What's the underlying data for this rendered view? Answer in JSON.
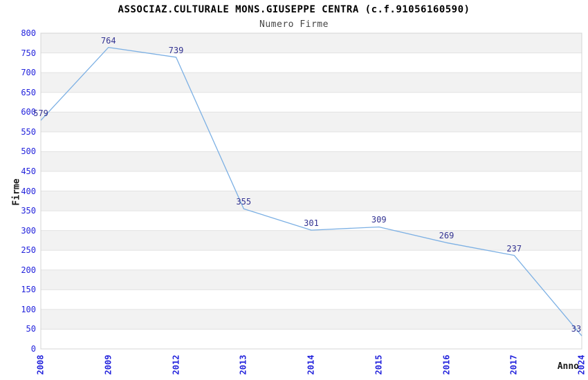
{
  "chart_data": {
    "type": "line",
    "title": "ASSOCIAZ.CULTURALE MONS.GIUSEPPE CENTRA (c.f.91056160590)",
    "subtitle": "Numero Firme",
    "xlabel": "Anno",
    "ylabel": "Firme",
    "categories": [
      "2008",
      "2009",
      "2012",
      "2013",
      "2014",
      "2015",
      "2016",
      "2017",
      "2024"
    ],
    "values": [
      579,
      764,
      739,
      355,
      301,
      309,
      269,
      237,
      33
    ],
    "ylim": [
      0,
      800
    ],
    "ytick_step": 50,
    "y_ticks": [
      0,
      50,
      100,
      150,
      200,
      250,
      300,
      350,
      400,
      450,
      500,
      550,
      600,
      650,
      700,
      750,
      800
    ],
    "grid": "horizontal gridlines with alternating background bands",
    "legend": "none",
    "data_labels_shown": true,
    "colors": {
      "line": "#7cb0e4",
      "tick_label": "#2323dc",
      "data_label": "#333392",
      "band": "#f2f2f2",
      "band_alt": "#ffffff",
      "gridline": "#e2e2e2",
      "plot_border": "#d4d4d4",
      "title": "#000000",
      "subtitle": "#444444",
      "axis_title": "#1a1a1a",
      "background": "#ffffff"
    }
  }
}
